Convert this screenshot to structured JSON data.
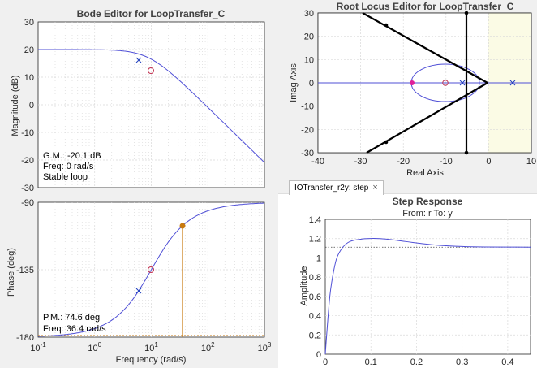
{
  "bode": {
    "title": "Bode Editor for LoopTransfer_C",
    "magnitude_ylabel": "Magnitude (dB)",
    "phase_ylabel": "Phase (deg)",
    "xlabel": "Frequency (rad/s)",
    "gm_text": "G.M.: -20.1 dB",
    "gm_freq_text": "Freq: 0 rad/s",
    "stable_text": "Stable loop",
    "pm_text": "P.M.: 74.6 deg",
    "pm_freq_text": "Freq: 36.4 rad/s",
    "mag_yticks": [
      "30",
      "20",
      "10",
      "0",
      "-10",
      "-20",
      "-30"
    ],
    "phase_yticks": [
      "-90",
      "-135",
      "-180"
    ],
    "x_ticks": [
      {
        "base": "10",
        "exp": "-1"
      },
      {
        "base": "10",
        "exp": "0"
      },
      {
        "base": "10",
        "exp": "1"
      },
      {
        "base": "10",
        "exp": "2"
      },
      {
        "base": "10",
        "exp": "3"
      }
    ]
  },
  "rlocus": {
    "title": "Root Locus Editor for LoopTransfer_C",
    "xlabel": "Real Axis",
    "ylabel": "Imag Axis",
    "xticks": [
      "-40",
      "-30",
      "-20",
      "-10",
      "0",
      "10"
    ],
    "yticks": [
      "30",
      "20",
      "10",
      "0",
      "-10",
      "-20",
      "-30"
    ]
  },
  "step": {
    "tab_label": "IOTransfer_r2y: step",
    "tab_close": "×",
    "title": "Step Response",
    "subtitle": "From: r  To: y",
    "ylabel": "Amplitude",
    "yticks": [
      "1.4",
      "1.2",
      "1",
      "0.8",
      "0.6",
      "0.4",
      "0.2",
      "0"
    ],
    "xticks": [
      "0",
      "0.1",
      "0.2",
      "0.3",
      "0.4"
    ]
  },
  "colors": {
    "curve": "#4f4fd6",
    "compensator_pole": "#1f3fbf",
    "zero_marker": "#c0304f",
    "pm_marker": "#c87a10",
    "closed_loop_pole": "#e0209a",
    "rl_background": "#fbfbe5"
  },
  "chart_data": [
    {
      "type": "line",
      "title": "Bode Editor for LoopTransfer_C",
      "xlabel": "Frequency (rad/s)",
      "ylabel": "Magnitude (dB)",
      "xscale": "log",
      "xlim": [
        0.1,
        1000
      ],
      "ylim": [
        -30,
        30
      ],
      "x": [
        0.1,
        1,
        2,
        4,
        6,
        10,
        20,
        50,
        100,
        300,
        1000
      ],
      "y": [
        20,
        20,
        19.9,
        19.3,
        18,
        11.5,
        4,
        -4,
        -10,
        -19.5,
        -30
      ]
    },
    {
      "type": "line",
      "xlabel": "Frequency (rad/s)",
      "ylabel": "Phase (deg)",
      "xscale": "log",
      "xlim": [
        0.1,
        1000
      ],
      "ylim": [
        -180,
        -90
      ],
      "x": [
        0.1,
        1,
        3,
        6,
        10,
        20,
        36.4,
        100,
        300,
        1000
      ],
      "y": [
        -180,
        -179,
        -175,
        -162,
        -147,
        -124,
        -105.4,
        -96,
        -92,
        -91
      ]
    },
    {
      "type": "scatter",
      "title": "Root Locus Editor for LoopTransfer_C",
      "xlabel": "Real Axis",
      "ylabel": "Imag Axis",
      "xlim": [
        -40,
        10
      ],
      "ylim": [
        -30,
        30
      ],
      "poles": [
        [
          -5,
          0
        ],
        [
          6,
          0
        ]
      ],
      "zeros": [
        [
          -10,
          0
        ]
      ],
      "closed_loop_poles": [
        [
          -18,
          0
        ],
        [
          -5,
          29.5
        ],
        [
          -5,
          -29.5
        ],
        [
          -24,
          25
        ],
        [
          -24,
          -25
        ]
      ]
    },
    {
      "type": "line",
      "title": "Step Response",
      "xlabel": "",
      "ylabel": "Amplitude",
      "xlim": [
        0,
        0.45
      ],
      "ylim": [
        0,
        1.4
      ],
      "x": [
        0,
        0.01,
        0.02,
        0.03,
        0.05,
        0.08,
        0.12,
        0.16,
        0.2,
        0.25,
        0.3,
        0.35,
        0.4,
        0.45
      ],
      "y": [
        0,
        0.6,
        0.9,
        1.05,
        1.16,
        1.195,
        1.2,
        1.18,
        1.155,
        1.13,
        1.118,
        1.113,
        1.112,
        1.111
      ],
      "steady_state": 1.111
    }
  ]
}
